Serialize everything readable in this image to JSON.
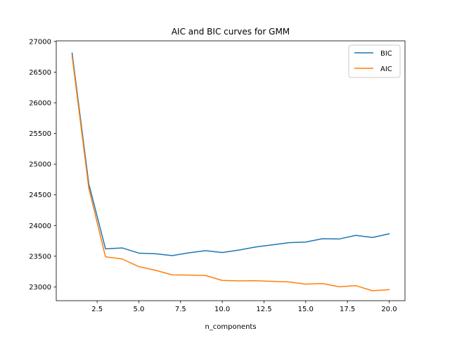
{
  "chart_data": {
    "type": "line",
    "title": "AIC and BIC curves for GMM",
    "xlabel": "n_components",
    "ylabel": "",
    "x": [
      1,
      2,
      3,
      4,
      5,
      6,
      7,
      8,
      9,
      10,
      11,
      12,
      13,
      14,
      15,
      16,
      17,
      18,
      19,
      20
    ],
    "xlim": [
      0.05,
      20.95
    ],
    "ylim": [
      22775,
      27010
    ],
    "xticks": [
      2.5,
      5.0,
      7.5,
      10.0,
      12.5,
      15.0,
      17.5,
      20.0
    ],
    "xtick_labels": [
      "2.5",
      "5.0",
      "7.5",
      "10.0",
      "12.5",
      "15.0",
      "17.5",
      "20.0"
    ],
    "yticks": [
      23000,
      23500,
      24000,
      24500,
      25000,
      25500,
      26000,
      26500,
      27000
    ],
    "ytick_labels": [
      "23000",
      "23500",
      "24000",
      "24500",
      "25000",
      "25500",
      "26000",
      "26500",
      "27000"
    ],
    "grid": false,
    "legend_position": "top-right",
    "series": [
      {
        "name": "BIC",
        "color": "#1f77b4",
        "values": [
          26810,
          24680,
          23620,
          23635,
          23550,
          23540,
          23510,
          23555,
          23590,
          23560,
          23600,
          23650,
          23685,
          23720,
          23730,
          23785,
          23780,
          23840,
          23805,
          23865
        ]
      },
      {
        "name": "AIC",
        "color": "#ff7f0e",
        "values": [
          26760,
          24610,
          23490,
          23455,
          23330,
          23270,
          23195,
          23192,
          23185,
          23105,
          23098,
          23100,
          23090,
          23080,
          23045,
          23055,
          23002,
          23020,
          22937,
          22955
        ]
      }
    ]
  }
}
